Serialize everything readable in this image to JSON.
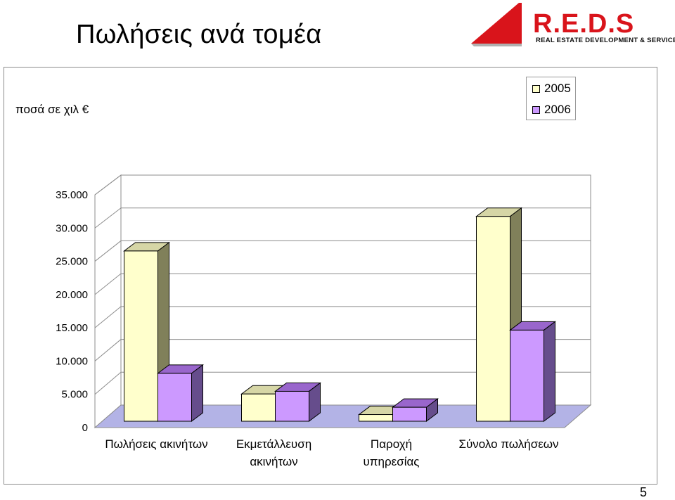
{
  "page": {
    "title": "Πωλήσεις ανά τομέα",
    "units_label": "ποσά σε χιλ €",
    "page_number": "5",
    "logo": {
      "text": "R.E.D.S",
      "tagline": "REAL ESTATE DEVELOPMENT & SERVICES",
      "accent_color": "#d9141b"
    }
  },
  "chart_data": {
    "type": "bar",
    "title": "",
    "xlabel": "",
    "ylabel": "",
    "ylim": [
      0,
      35000
    ],
    "yticks": [
      0,
      5000,
      10000,
      15000,
      20000,
      25000,
      30000,
      35000
    ],
    "ytick_labels": [
      "0",
      "5.000",
      "10.000",
      "15.000",
      "20.000",
      "25.000",
      "30.000",
      "35.000"
    ],
    "grid": true,
    "legend_position": "top-right",
    "categories": [
      [
        "Πωλήσεις ακινήτων"
      ],
      [
        "Εκμετάλλευση",
        "ακινήτων"
      ],
      [
        "Παροχή",
        "υπηρεσίας"
      ],
      [
        "Σύνολο πωλήσεων"
      ]
    ],
    "series": [
      {
        "name": "2005",
        "color": "#ffffcc",
        "values": [
          25600,
          4100,
          1000,
          30800
        ]
      },
      {
        "name": "2006",
        "color": "#cc99ff",
        "values": [
          7200,
          4500,
          2100,
          13700
        ]
      }
    ]
  }
}
